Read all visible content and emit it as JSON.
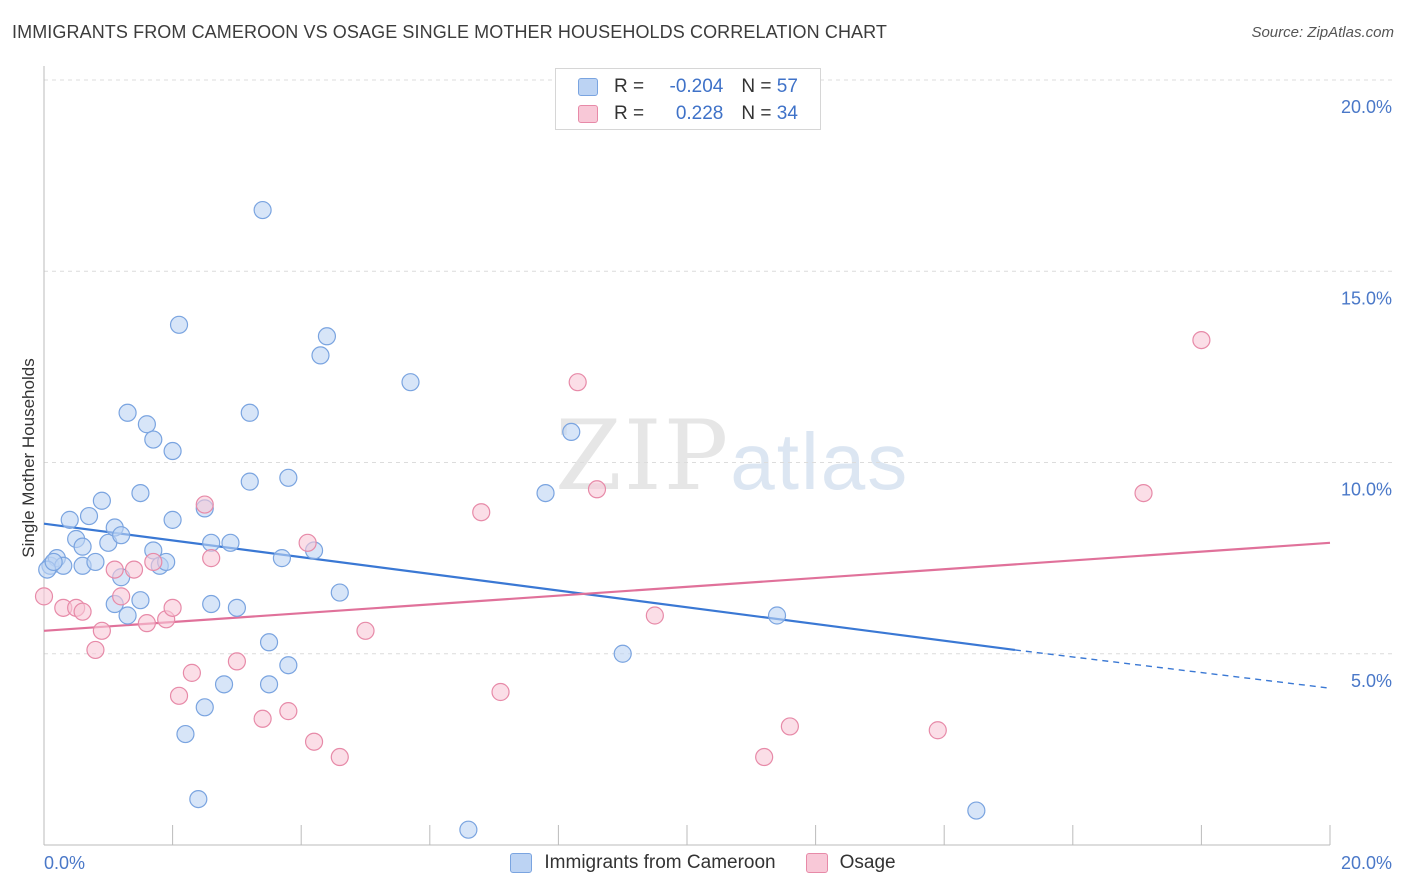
{
  "header": {
    "title": "IMMIGRANTS FROM CAMEROON VS OSAGE SINGLE MOTHER HOUSEHOLDS CORRELATION CHART",
    "source": "Source: ZipAtlas.com"
  },
  "watermark": {
    "zip": "ZIP",
    "atlas": "atlas"
  },
  "legend": {
    "rows": [
      {
        "r_label": "R = ",
        "r_value": "-0.204",
        "n_label": "N = ",
        "n_value": "57",
        "fill": "#bcd3f3",
        "stroke": "#7aa4e0"
      },
      {
        "r_label": "R = ",
        "r_value": "0.228",
        "n_label": "N = ",
        "n_value": "34",
        "fill": "#f8c8d7",
        "stroke": "#e78aa8"
      }
    ]
  },
  "bottom_legend": {
    "items": [
      {
        "label": "Immigrants from Cameroon",
        "fill": "#bcd3f3",
        "stroke": "#7aa4e0"
      },
      {
        "label": "Osage",
        "fill": "#f8c8d7",
        "stroke": "#e78aa8"
      }
    ]
  },
  "chart_data": {
    "type": "scatter",
    "title": "IMMIGRANTS FROM CAMEROON VS OSAGE SINGLE MOTHER HOUSEHOLDS CORRELATION CHART",
    "xlabel": "",
    "ylabel": "Single Mother Households",
    "xlim": [
      0,
      20
    ],
    "ylim": [
      0,
      20
    ],
    "x_tick_labels": [
      "0.0%",
      "20.0%"
    ],
    "y_ticks": [
      5,
      10,
      15,
      20
    ],
    "y_tick_labels": [
      "5.0%",
      "10.0%",
      "15.0%",
      "20.0%"
    ],
    "grid": true,
    "legend_position": "top-center",
    "colors": {
      "cameroon": "#3a78d4",
      "osage": "#e0719a"
    },
    "series": [
      {
        "name": "Immigrants from Cameroon",
        "fill": "#bcd3f3",
        "stroke": "#7aa4e0",
        "line_color": "#3a78d4",
        "trend": {
          "x_start": 0,
          "y_start": 8.4,
          "x_solid_end": 15.1,
          "y_solid_end": 5.1,
          "x_end": 20,
          "y_end": 4.1
        },
        "points": [
          [
            0.1,
            7.3
          ],
          [
            0.2,
            7.5
          ],
          [
            0.3,
            7.3
          ],
          [
            0.4,
            8.5
          ],
          [
            0.5,
            8.0
          ],
          [
            0.6,
            7.8
          ],
          [
            0.6,
            7.3
          ],
          [
            0.7,
            8.6
          ],
          [
            0.8,
            7.4
          ],
          [
            0.9,
            9.0
          ],
          [
            1.0,
            7.9
          ],
          [
            1.1,
            8.3
          ],
          [
            1.1,
            6.3
          ],
          [
            1.2,
            8.1
          ],
          [
            1.2,
            7.0
          ],
          [
            1.3,
            6.0
          ],
          [
            1.3,
            11.3
          ],
          [
            1.5,
            9.2
          ],
          [
            1.5,
            6.4
          ],
          [
            1.6,
            11.0
          ],
          [
            1.7,
            10.6
          ],
          [
            1.7,
            7.7
          ],
          [
            1.8,
            7.3
          ],
          [
            1.9,
            7.4
          ],
          [
            2.0,
            8.5
          ],
          [
            2.0,
            10.3
          ],
          [
            2.1,
            13.6
          ],
          [
            2.2,
            2.9
          ],
          [
            2.4,
            1.2
          ],
          [
            2.5,
            3.6
          ],
          [
            2.5,
            8.8
          ],
          [
            2.6,
            6.3
          ],
          [
            2.6,
            7.9
          ],
          [
            2.8,
            4.2
          ],
          [
            2.9,
            7.9
          ],
          [
            3.0,
            6.2
          ],
          [
            3.2,
            9.5
          ],
          [
            3.2,
            11.3
          ],
          [
            3.4,
            16.6
          ],
          [
            3.5,
            4.2
          ],
          [
            3.5,
            5.3
          ],
          [
            3.7,
            7.5
          ],
          [
            3.8,
            9.6
          ],
          [
            3.8,
            4.7
          ],
          [
            4.2,
            7.7
          ],
          [
            4.3,
            12.8
          ],
          [
            4.4,
            13.3
          ],
          [
            4.6,
            6.6
          ],
          [
            5.7,
            12.1
          ],
          [
            6.6,
            0.4
          ],
          [
            7.8,
            9.2
          ],
          [
            8.2,
            10.8
          ],
          [
            9.0,
            5.0
          ],
          [
            11.4,
            6.0
          ],
          [
            14.5,
            0.9
          ],
          [
            0.05,
            7.2
          ],
          [
            0.15,
            7.4
          ]
        ]
      },
      {
        "name": "Osage",
        "fill": "#f8c8d7",
        "stroke": "#e78aa8",
        "line_color": "#e0719a",
        "trend": {
          "x_start": 0,
          "y_start": 5.6,
          "x_end": 20,
          "y_end": 7.9
        },
        "points": [
          [
            0.0,
            6.5
          ],
          [
            0.3,
            6.2
          ],
          [
            0.5,
            6.2
          ],
          [
            0.6,
            6.1
          ],
          [
            0.8,
            5.1
          ],
          [
            0.9,
            5.6
          ],
          [
            1.1,
            7.2
          ],
          [
            1.2,
            6.5
          ],
          [
            1.4,
            7.2
          ],
          [
            1.6,
            5.8
          ],
          [
            1.7,
            7.4
          ],
          [
            1.9,
            5.9
          ],
          [
            2.0,
            6.2
          ],
          [
            2.1,
            3.9
          ],
          [
            2.3,
            4.5
          ],
          [
            2.5,
            8.9
          ],
          [
            2.6,
            7.5
          ],
          [
            3.0,
            4.8
          ],
          [
            3.4,
            3.3
          ],
          [
            3.8,
            3.5
          ],
          [
            4.1,
            7.9
          ],
          [
            4.2,
            2.7
          ],
          [
            4.6,
            2.3
          ],
          [
            5.0,
            5.6
          ],
          [
            6.8,
            8.7
          ],
          [
            7.1,
            4.0
          ],
          [
            8.3,
            12.1
          ],
          [
            8.6,
            9.3
          ],
          [
            9.5,
            6.0
          ],
          [
            11.2,
            2.3
          ],
          [
            11.6,
            3.1
          ],
          [
            13.9,
            3.0
          ],
          [
            17.1,
            9.2
          ],
          [
            18.0,
            13.2
          ]
        ]
      }
    ]
  }
}
